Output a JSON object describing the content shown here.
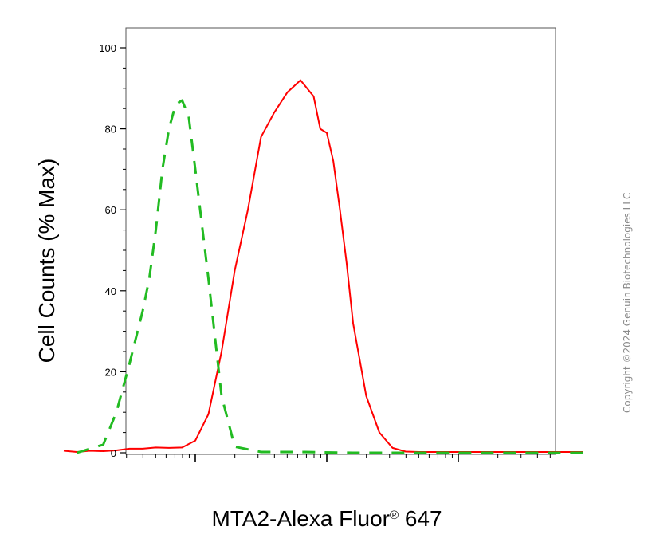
{
  "chart_data": {
    "type": "line",
    "xlabel": "MTA2-Alexa Fluor",
    "xlabel_mark": "®",
    "xlabel_suffix": " 647",
    "ylabel": "Cell Counts (% Max)",
    "yticks": [
      "0",
      "20",
      "40",
      "60",
      "80",
      "100"
    ],
    "ylim": [
      0,
      100
    ],
    "x_scale": "log",
    "xlim_decades": [
      0,
      4
    ],
    "grid": false,
    "series": [
      {
        "color": "#ff0000",
        "style": "solid",
        "x": [
          0.0,
          0.1,
          0.2,
          0.3,
          0.4,
          0.5,
          0.6,
          0.7,
          0.8,
          0.9,
          1.0,
          1.1,
          1.2,
          1.3,
          1.4,
          1.5,
          1.6,
          1.7,
          1.8,
          1.9,
          1.95,
          2.0,
          2.05,
          2.1,
          2.15,
          2.2,
          2.3,
          2.4,
          2.5,
          2.6,
          2.7,
          2.8,
          2.9,
          3.0,
          3.2,
          3.4,
          3.6,
          3.8,
          3.95
        ],
        "y": [
          0.5,
          0.2,
          0.5,
          0.4,
          0.6,
          1.0,
          1.0,
          1.3,
          1.2,
          1.3,
          3.0,
          9.5,
          25,
          45,
          60,
          78,
          84,
          89,
          92,
          88,
          80,
          79,
          72,
          60,
          47,
          32,
          14,
          5,
          1.2,
          0.3,
          0.2,
          0.2,
          0.2,
          0.2,
          0.2,
          0.2,
          0.2,
          0.2,
          0.2
        ]
      },
      {
        "color": "#22bb22",
        "style": "dashed",
        "x": [
          0.1,
          0.3,
          0.4,
          0.5,
          0.6,
          0.65,
          0.7,
          0.75,
          0.8,
          0.85,
          0.9,
          0.95,
          1.0,
          1.1,
          1.2,
          1.3,
          1.5,
          1.8,
          2.2,
          2.6,
          3.0,
          3.5,
          3.95
        ],
        "y": [
          0,
          2,
          10,
          22,
          35,
          43,
          55,
          70,
          80,
          86,
          87,
          83,
          70,
          43,
          14,
          1.5,
          0.2,
          0.2,
          0,
          0,
          0,
          0,
          0
        ]
      }
    ]
  },
  "copyright": "Copyright ©2024 Genuin Biotechnologies LLC"
}
